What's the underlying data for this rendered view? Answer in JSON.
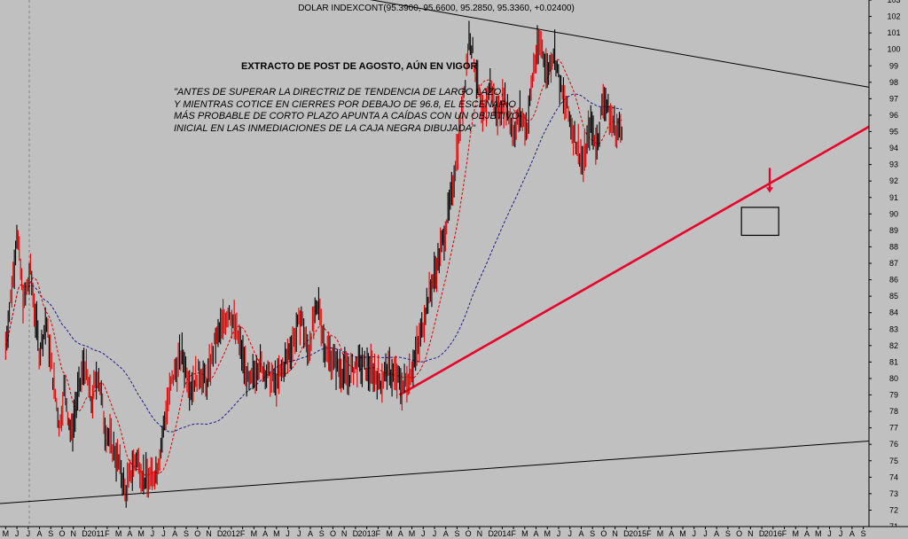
{
  "chart_data": {
    "type": "line",
    "title": "DOLAR INDEXCONT(95.3900, 95.6600, 95.2850, 95.3360, +0.02400)",
    "annotation_heading": "EXTRACTO DE POST DE AGOSTO, AÚN EN VIGOR",
    "annotation_lines": [
      "\"ANTES DE SUPERAR LA DIRECTRIZ DE TENDENCIA DE LARGO LAZO,",
      "Y MIENTRAS COTICE EN CIERRES POR DEBAJO DE 96.8, EL ESCENARIO",
      "MÁS PROBABLE DE CORTO PLAZO APUNTA A CAÍDAS CON UN OBJETIVO",
      "INICIAL EN LAS INMEDIACIONES DE LA CAJA NEGRA DIBUJADA\""
    ],
    "ylim": [
      71,
      103
    ],
    "ytick_labels": [
      "71",
      "72",
      "73",
      "74",
      "75",
      "76",
      "77",
      "78",
      "79",
      "80",
      "81",
      "82",
      "83",
      "84",
      "85",
      "86",
      "87",
      "88",
      "89",
      "90",
      "91",
      "92",
      "93",
      "94",
      "95",
      "96",
      "97",
      "98",
      "99",
      "100",
      "101",
      "102",
      "103"
    ],
    "xtick_labels": [
      "M",
      "J",
      "J",
      "A",
      "S",
      "O",
      "N",
      "D",
      "2011",
      "F",
      "M",
      "A",
      "M",
      "J",
      "J",
      "A",
      "S",
      "O",
      "N",
      "D",
      "2012",
      "F",
      "M",
      "A",
      "M",
      "J",
      "J",
      "A",
      "S",
      "O",
      "N",
      "D",
      "2013",
      "F",
      "M",
      "A",
      "M",
      "J",
      "J",
      "A",
      "S",
      "O",
      "N",
      "D",
      "2014",
      "F",
      "M",
      "A",
      "M",
      "J",
      "J",
      "A",
      "S",
      "O",
      "N",
      "D",
      "2015",
      "F",
      "M",
      "A",
      "M",
      "J",
      "J",
      "A",
      "S",
      "O",
      "N",
      "D",
      "2016",
      "F",
      "M",
      "A",
      "M",
      "J",
      "J",
      "A",
      "S"
    ],
    "x_start_index": -0.5,
    "x_end_index": 76.5,
    "price_path": [
      [
        0,
        82
      ],
      [
        0.7,
        86.5
      ],
      [
        1,
        89
      ],
      [
        1.6,
        84.5
      ],
      [
        2.2,
        86.5
      ],
      [
        3,
        81.5
      ],
      [
        3.6,
        83.5
      ],
      [
        4.2,
        80
      ],
      [
        4.8,
        77
      ],
      [
        5.2,
        79.5
      ],
      [
        5.8,
        76.5
      ],
      [
        6.4,
        79
      ],
      [
        7,
        81
      ],
      [
        7.6,
        78.5
      ],
      [
        8.2,
        80.5
      ],
      [
        8.8,
        77
      ],
      [
        9.4,
        76
      ],
      [
        10.2,
        74.5
      ],
      [
        10.6,
        73
      ],
      [
        11.2,
        74.5
      ],
      [
        11.6,
        75.2
      ],
      [
        12.2,
        74
      ],
      [
        12.8,
        73.8
      ],
      [
        13.4,
        74.5
      ],
      [
        13.8,
        76
      ],
      [
        14.2,
        78
      ],
      [
        14.8,
        80
      ],
      [
        15.6,
        81.5
      ],
      [
        16.4,
        79.5
      ],
      [
        17.2,
        80.5
      ],
      [
        17.8,
        79.6
      ],
      [
        18.5,
        82
      ],
      [
        19.2,
        83.2
      ],
      [
        19.8,
        84.2
      ],
      [
        20.6,
        82.5
      ],
      [
        21.6,
        79.5
      ],
      [
        22.4,
        81
      ],
      [
        23.2,
        80.2
      ],
      [
        24,
        79.7
      ],
      [
        24.8,
        81
      ],
      [
        25.6,
        82.5
      ],
      [
        26.2,
        83.8
      ],
      [
        26.8,
        81.5
      ],
      [
        27.2,
        83.2
      ],
      [
        27.8,
        84.5
      ],
      [
        28.2,
        82
      ],
      [
        28.8,
        81.3
      ],
      [
        29.6,
        80.6
      ],
      [
        30.4,
        80.2
      ],
      [
        31.2,
        80.9
      ],
      [
        32,
        80.6
      ],
      [
        32.6,
        80.4
      ],
      [
        33.2,
        79.8
      ],
      [
        33.8,
        80.5
      ],
      [
        34.4,
        80.2
      ],
      [
        35.2,
        79.5
      ],
      [
        35.8,
        80.3
      ],
      [
        36.6,
        82
      ],
      [
        37.3,
        84.5
      ],
      [
        38.1,
        86.5
      ],
      [
        38.8,
        88.5
      ],
      [
        39.5,
        91
      ],
      [
        40.2,
        95
      ],
      [
        40.7,
        98
      ],
      [
        41.1,
        101
      ],
      [
        41.7,
        98.5
      ],
      [
        42.3,
        95.5
      ],
      [
        42.9,
        98
      ],
      [
        43.5,
        96
      ],
      [
        44.2,
        97
      ],
      [
        45,
        95
      ],
      [
        45.6,
        96
      ],
      [
        46.2,
        95.2
      ],
      [
        46.8,
        99
      ],
      [
        47.4,
        100.5
      ],
      [
        48,
        98.5
      ],
      [
        48.6,
        100
      ],
      [
        49.2,
        97.5
      ],
      [
        49.8,
        96.2
      ],
      [
        50.5,
        94.5
      ],
      [
        51.2,
        93
      ],
      [
        51.8,
        95.5
      ],
      [
        52.4,
        94.2
      ],
      [
        53,
        97.2
      ],
      [
        53.6,
        95.8
      ],
      [
        54.2,
        95
      ],
      [
        54.6,
        95.3
      ]
    ],
    "series": [
      {
        "name": "",
        "color": "#000000"
      },
      {
        "name": "",
        "color": "#e00000"
      },
      {
        "name": "",
        "color": "#1a1a8c"
      }
    ],
    "trendlines": [
      {
        "from": [
          -0.5,
          72.4
        ],
        "to": [
          76.5,
          76.2
        ],
        "color": "#000000"
      },
      {
        "from": [
          27.5,
          103.6
        ],
        "to": [
          76.5,
          97.7
        ],
        "color": "#000000"
      },
      {
        "from": [
          34.9,
          79
        ],
        "to": [
          76.5,
          95.3
        ],
        "color": "#e8002a",
        "weight": "thick"
      }
    ],
    "target_box": {
      "x1": 65.2,
      "x2": 68.5,
      "y_top": 90.4,
      "y_bottom": 88.7
    },
    "down_arrow": {
      "x": 67.7,
      "y_top": 92.8,
      "y_bottom": 91.4,
      "color": "#e8002a"
    },
    "colors": {
      "background": "#c0c0c0",
      "price": "#000000",
      "price_highlight": "#e00000",
      "ma_short": "#e00000",
      "ma_long": "#1a1a8c",
      "support": "#e8002a",
      "grid": "#808080"
    }
  }
}
